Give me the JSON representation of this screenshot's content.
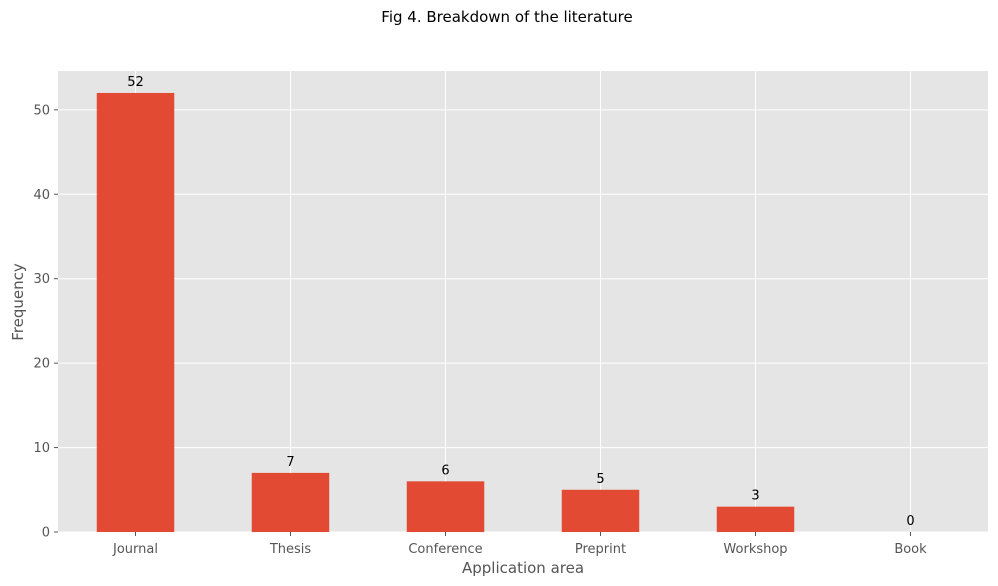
{
  "chart_data": {
    "type": "bar",
    "title": "Fig 4. Breakdown of the literature",
    "xlabel": "Application area",
    "ylabel": "Frequency",
    "categories": [
      "Journal",
      "Thesis",
      "Conference",
      "Preprint",
      "Workshop",
      "Book"
    ],
    "values": [
      52,
      7,
      6,
      5,
      3,
      0
    ],
    "data_labels": [
      "52",
      "7",
      "6",
      "5",
      "3",
      "0"
    ],
    "ylim": [
      0,
      54.6
    ],
    "yticks": [
      0,
      10,
      20,
      30,
      40,
      50
    ],
    "ytick_labels": [
      "0",
      "10",
      "20",
      "30",
      "40",
      "50"
    ],
    "grid": true,
    "legend": "none",
    "colors": {
      "bar": "#E24A33",
      "plot_background": "#E5E5E5",
      "grid": "#FFFFFF"
    }
  }
}
